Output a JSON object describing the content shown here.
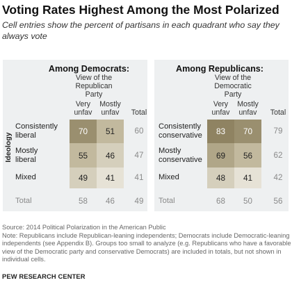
{
  "title": "Voting Rates Highest Among the Most Polarized",
  "subtitle": "Cell entries show the percent of partisans in each quadrant who say they always vote",
  "colors": {
    "panel_bg": "#eef0f1",
    "shade_1": "#b8ae8e",
    "shade_2": "#c6bea5",
    "shade_3": "#d6cfba",
    "shade_4": "#e3ddcc",
    "total_text": "#8a8a8a"
  },
  "chart_data": [
    {
      "type": "table",
      "title": "Among Democrats:",
      "view_label": "View of the Republican Party",
      "row_axis_label": "Ideology",
      "columns": [
        "Very unfav",
        "Mostly unfav",
        "Total"
      ],
      "rows": [
        {
          "label": "Consistently liberal",
          "values": [
            70,
            51
          ],
          "total": 60
        },
        {
          "label": "Mostly liberal",
          "values": [
            55,
            46
          ],
          "total": 47
        },
        {
          "label": "Mixed",
          "values": [
            49,
            41
          ],
          "total": 41
        },
        {
          "label": "Total",
          "values": [
            58,
            46
          ],
          "total": 49
        }
      ]
    },
    {
      "type": "table",
      "title": "Among Republicans:",
      "view_label": "View of the Democratic Party",
      "row_axis_label": "",
      "columns": [
        "Very unfav",
        "Mostly unfav",
        "Total"
      ],
      "rows": [
        {
          "label": "Consistently conservative",
          "values": [
            83,
            70
          ],
          "total": 79
        },
        {
          "label": "Mostly conservative",
          "values": [
            69,
            56
          ],
          "total": 62
        },
        {
          "label": "Mixed",
          "values": [
            48,
            41
          ],
          "total": 42
        },
        {
          "label": "Total",
          "values": [
            68,
            50
          ],
          "total": 56
        }
      ]
    }
  ],
  "source": "Source: 2014 Political Polarization in the American Public",
  "note": "Note: Republicans include Republican-leaning independents; Democrats include Democratic-leaning independents (see Appendix B). Groups too small to analyze (e.g. Republicans who have a favorable view of the Democratic party and conservative Democrats) are included in totals, but not shown in individual cells.",
  "brand": "PEW RESEARCH CENTER"
}
